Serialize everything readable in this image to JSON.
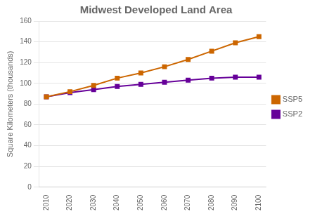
{
  "chart_data": {
    "type": "line",
    "title": "Midwest Developed Land Area",
    "y_label": "Square Kilometers (thousands)",
    "x": [
      2010,
      2020,
      2030,
      2040,
      2050,
      2060,
      2070,
      2080,
      2090,
      2100
    ],
    "series": [
      {
        "name": "SSP5",
        "color": "#CC6600",
        "marker": "square",
        "values": [
          87,
          92,
          98,
          105,
          110,
          116,
          123,
          131,
          139,
          145
        ]
      },
      {
        "name": "SSP2",
        "color": "#660099",
        "marker": "square",
        "values": [
          87,
          91,
          94,
          97,
          99,
          101,
          103,
          105,
          106,
          106
        ]
      }
    ],
    "xlim": [
      2007,
      2103
    ],
    "xticks": [
      2010,
      2020,
      2030,
      2040,
      2050,
      2060,
      2070,
      2080,
      2090,
      2100
    ],
    "ylim": [
      0,
      160
    ],
    "yticks": [
      0,
      20,
      40,
      60,
      80,
      100,
      120,
      140,
      160
    ],
    "grid": "y",
    "legend": "right"
  }
}
